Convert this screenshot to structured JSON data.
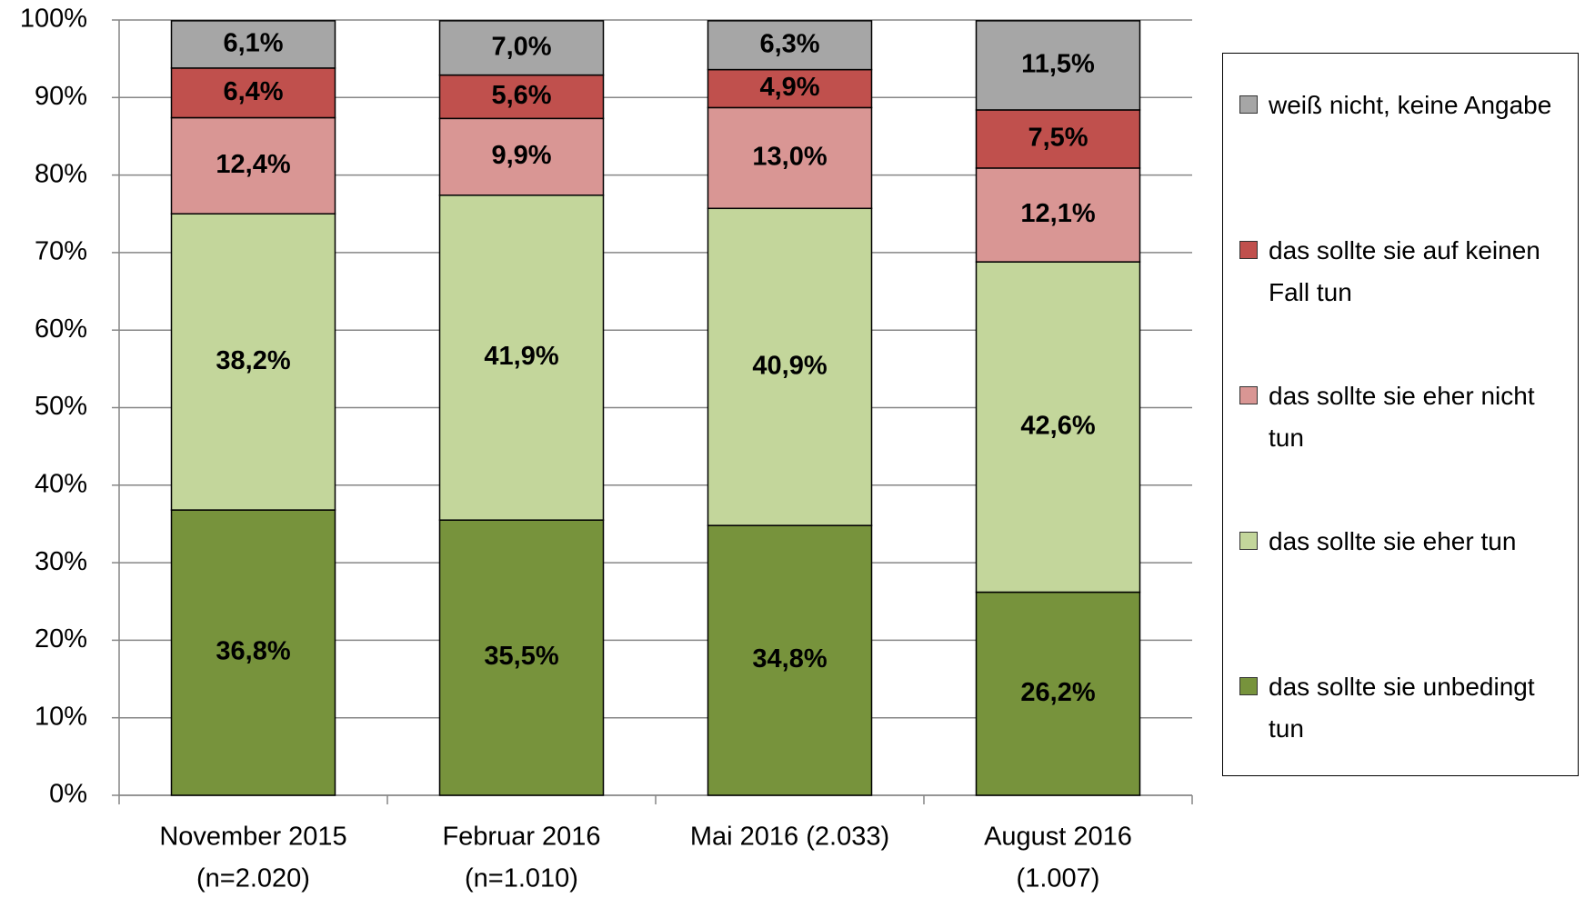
{
  "chart_data": {
    "type": "stacked_bar",
    "categories": [
      [
        "November 2015",
        "(n=2.020)"
      ],
      [
        "Februar 2016",
        "(n=1.010)"
      ],
      [
        "Mai 2016 (2.033)"
      ],
      [
        "August 2016",
        "(1.007)"
      ]
    ],
    "series": [
      {
        "name": "das sollte sie unbedingt tun",
        "color": "#77933c",
        "values": [
          36.8,
          35.5,
          34.8,
          26.2
        ],
        "value_labels": [
          "36,8%",
          "35,5%",
          "34,8%",
          "26,2%"
        ]
      },
      {
        "name": "das sollte sie eher tun",
        "color": "#c3d69b",
        "values": [
          38.2,
          41.9,
          40.9,
          42.6
        ],
        "value_labels": [
          "38,2%",
          "41,9%",
          "40,9%",
          "42,6%"
        ]
      },
      {
        "name": "das sollte sie eher nicht tun",
        "color": "#d99694",
        "values": [
          12.4,
          9.9,
          13.0,
          12.1
        ],
        "value_labels": [
          "12,4%",
          "9,9%",
          "13,0%",
          "12,1%"
        ]
      },
      {
        "name": "das sollte sie auf keinen Fall tun",
        "color": "#c0504d",
        "values": [
          6.4,
          5.6,
          4.9,
          7.5
        ],
        "value_labels": [
          "6,4%",
          "5,6%",
          "4,9%",
          "7,5%"
        ]
      },
      {
        "name": "weiß nicht, keine Angabe",
        "color": "#a6a6a6",
        "values": [
          6.1,
          7.0,
          6.3,
          11.5
        ],
        "value_labels": [
          "6,1%",
          "7,0%",
          "6,3%",
          "11,5%"
        ]
      }
    ],
    "ylim": [
      0,
      100
    ],
    "yticks": [
      {
        "value": 0,
        "label": "0%"
      },
      {
        "value": 10,
        "label": "10%"
      },
      {
        "value": 20,
        "label": "20%"
      },
      {
        "value": 30,
        "label": "30%"
      },
      {
        "value": 40,
        "label": "40%"
      },
      {
        "value": 50,
        "label": "50%"
      },
      {
        "value": 60,
        "label": "60%"
      },
      {
        "value": 70,
        "label": "70%"
      },
      {
        "value": 80,
        "label": "80%"
      },
      {
        "value": 90,
        "label": "90%"
      },
      {
        "value": 100,
        "label": "100%"
      }
    ],
    "grid": true,
    "legend": "right"
  }
}
